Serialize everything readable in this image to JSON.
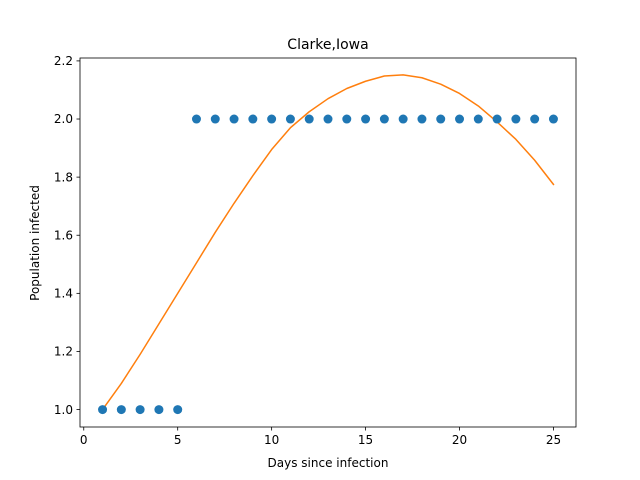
{
  "chart_data": {
    "type": "scatter",
    "title": "Clarke,Iowa",
    "xlabel": "Days since infection",
    "ylabel": "Population infected",
    "xlim": [
      -0.2,
      26.2
    ],
    "ylim": [
      0.94,
      2.21
    ],
    "xticks": [
      0,
      5,
      10,
      15,
      20,
      25
    ],
    "yticks": [
      1.0,
      1.2,
      1.4,
      1.6,
      1.8,
      2.0,
      2.2
    ],
    "xtick_labels": [
      "0",
      "5",
      "10",
      "15",
      "20",
      "25"
    ],
    "ytick_labels": [
      "1.0",
      "1.2",
      "1.4",
      "1.6",
      "1.8",
      "2.0",
      "2.2"
    ],
    "grid": false,
    "series": [
      {
        "kind": "scatter",
        "color": "#1f77b4",
        "x": [
          1,
          2,
          3,
          4,
          5,
          6,
          7,
          8,
          9,
          10,
          11,
          12,
          13,
          14,
          15,
          16,
          17,
          18,
          19,
          20,
          21,
          22,
          23,
          24,
          25
        ],
        "y": [
          1,
          1,
          1,
          1,
          1,
          2,
          2,
          2,
          2,
          2,
          2,
          2,
          2,
          2,
          2,
          2,
          2,
          2,
          2,
          2,
          2,
          2,
          2,
          2,
          2
        ]
      },
      {
        "kind": "line",
        "color": "#ff7f0e",
        "x": [
          1,
          2,
          3,
          4,
          5,
          6,
          7,
          8,
          9,
          10,
          11,
          12,
          13,
          14,
          15,
          16,
          17,
          18,
          19,
          20,
          21,
          22,
          23,
          24,
          25
        ],
        "y": [
          1.0,
          1.09,
          1.19,
          1.295,
          1.4,
          1.505,
          1.61,
          1.71,
          1.805,
          1.895,
          1.97,
          2.025,
          2.07,
          2.105,
          2.13,
          2.148,
          2.152,
          2.142,
          2.12,
          2.088,
          2.045,
          1.99,
          1.93,
          1.858,
          1.775
        ]
      }
    ]
  }
}
